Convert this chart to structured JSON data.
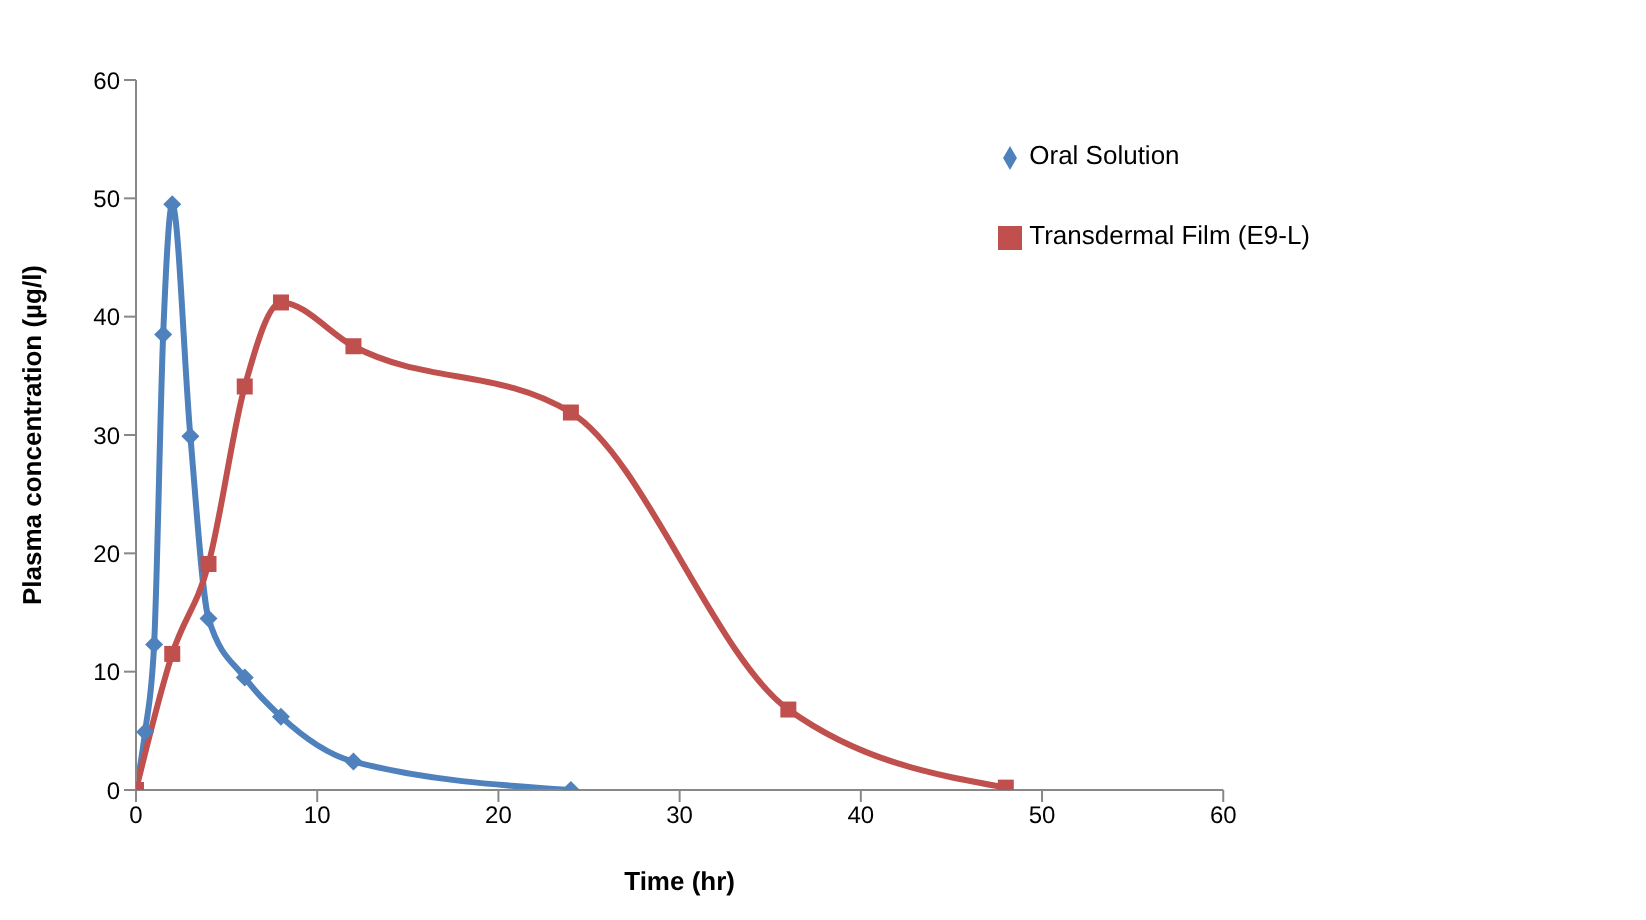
{
  "chart_data": {
    "type": "line",
    "xlabel": "Time (hr)",
    "ylabel": "Plasma concentration  (µg/l)",
    "xlim": [
      0,
      60
    ],
    "xticks": [
      0,
      10,
      20,
      30,
      40,
      50,
      60
    ],
    "ylim": [
      0,
      60
    ],
    "yticks": [
      0,
      10,
      20,
      30,
      40,
      50,
      60
    ],
    "grid": false,
    "legend": "top right",
    "line_style": "solid",
    "series": [
      {
        "name": "Oral Solution",
        "color": "#4f81bd",
        "marker": "diamond",
        "x": [
          0,
          0.5,
          1,
          1.5,
          2,
          3,
          4,
          6,
          8,
          12,
          24
        ],
        "values": [
          0,
          4.9,
          12.3,
          38.5,
          49.5,
          29.9,
          14.5,
          9.5,
          6.2,
          2.4,
          0
        ]
      },
      {
        "name": "Transdermal Film (E9-L)",
        "color": "#c0504d",
        "marker": "square",
        "x": [
          0,
          2,
          4,
          6,
          8,
          12,
          24,
          36,
          48
        ],
        "values": [
          0,
          11.5,
          19.1,
          34.1,
          41.2,
          37.5,
          31.9,
          6.8,
          0.2
        ]
      }
    ]
  }
}
